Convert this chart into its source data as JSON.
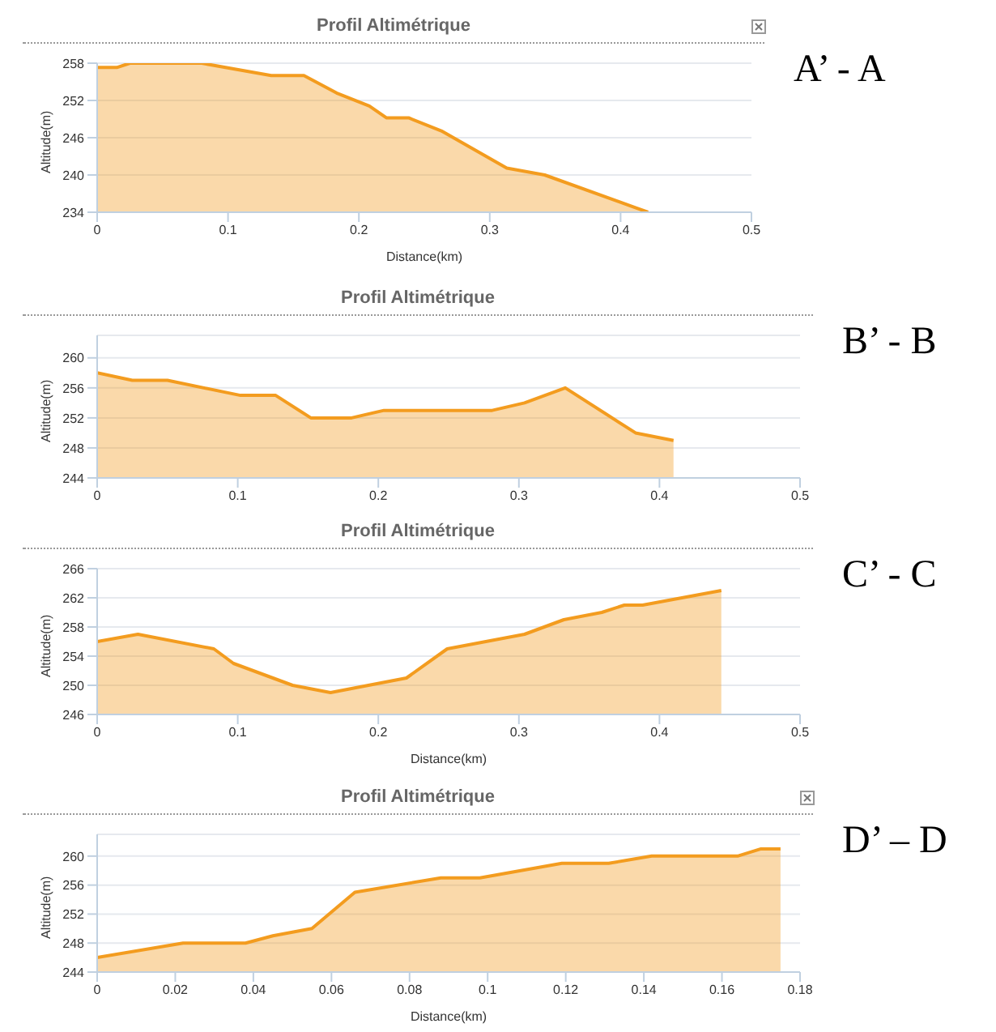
{
  "chart_data": [
    {
      "type": "area",
      "title": "Profil Altimétrique",
      "xlabel": "Distance(km)",
      "ylabel": "Altitude(m)",
      "annotations": [
        "A’ - A"
      ],
      "color": "#f39c1f",
      "grid": "y",
      "marker": "none",
      "x": [
        0,
        0.015,
        0.025,
        0.08,
        0.133,
        0.158,
        0.183,
        0.208,
        0.221,
        0.238,
        0.263,
        0.313,
        0.342,
        0.421
      ],
      "values": [
        257.3,
        257.3,
        258,
        258,
        256,
        256,
        253.2,
        251.1,
        249.2,
        249.2,
        247.1,
        241.1,
        240,
        234
      ],
      "xlim": [
        0,
        0.5
      ],
      "xticks": [
        0,
        0.1,
        0.2,
        0.3,
        0.4,
        0.5
      ],
      "ylim": [
        234,
        258
      ],
      "yticks": [
        234,
        240,
        246,
        252,
        258
      ]
    },
    {
      "type": "area",
      "title": "Profil Altimétrique",
      "ylabel": "Altitude(m)",
      "annotations": [
        "B’ - B"
      ],
      "color": "#f39c1f",
      "grid": "y",
      "marker": "none",
      "x": [
        0,
        0.025,
        0.05,
        0.102,
        0.127,
        0.152,
        0.181,
        0.204,
        0.281,
        0.304,
        0.333,
        0.383,
        0.41
      ],
      "values": [
        258,
        257,
        257,
        255,
        255,
        252,
        252,
        253,
        253,
        254,
        256,
        250,
        249
      ],
      "xlim": [
        0,
        0.5
      ],
      "xticks": [
        0,
        0.1,
        0.2,
        0.3,
        0.4,
        0.5
      ],
      "ylim": [
        244,
        263
      ],
      "yticks": [
        244,
        248,
        252,
        256,
        260
      ]
    },
    {
      "type": "area",
      "title": "Profil Altimétrique",
      "xlabel": "Distance(km)",
      "ylabel": "Altitude(m)",
      "annotations": [
        "C’ - C"
      ],
      "color": "#f39c1f",
      "grid": "y",
      "marker": "none",
      "x": [
        0,
        0.029,
        0.083,
        0.097,
        0.139,
        0.166,
        0.22,
        0.249,
        0.304,
        0.332,
        0.359,
        0.375,
        0.388,
        0.444
      ],
      "values": [
        256,
        257,
        255,
        253,
        250,
        249,
        251,
        255,
        257,
        259,
        260,
        261,
        261,
        263
      ],
      "xlim": [
        0,
        0.5
      ],
      "xticks": [
        0,
        0.1,
        0.2,
        0.3,
        0.4,
        0.5
      ],
      "ylim": [
        246,
        266
      ],
      "yticks": [
        246,
        250,
        254,
        258,
        262,
        266
      ]
    },
    {
      "type": "area",
      "title": "Profil Altimétrique",
      "xlabel": "Distance(km)",
      "ylabel": "Altitude(m)",
      "annotations": [
        "D’ – D"
      ],
      "color": "#f39c1f",
      "grid": "y",
      "marker": "none",
      "x": [
        0,
        0.022,
        0.038,
        0.045,
        0.055,
        0.066,
        0.088,
        0.098,
        0.119,
        0.131,
        0.142,
        0.164,
        0.17,
        0.175
      ],
      "values": [
        246,
        248,
        248,
        249,
        250,
        255,
        257,
        257,
        259,
        259,
        260,
        260,
        261,
        261
      ],
      "xlim": [
        0,
        0.18
      ],
      "xticks": [
        0,
        0.02,
        0.04,
        0.06,
        0.08,
        0.1,
        0.12,
        0.14,
        0.16,
        0.18
      ],
      "ylim": [
        244,
        263
      ],
      "yticks": [
        244,
        248,
        252,
        256,
        260
      ]
    }
  ]
}
